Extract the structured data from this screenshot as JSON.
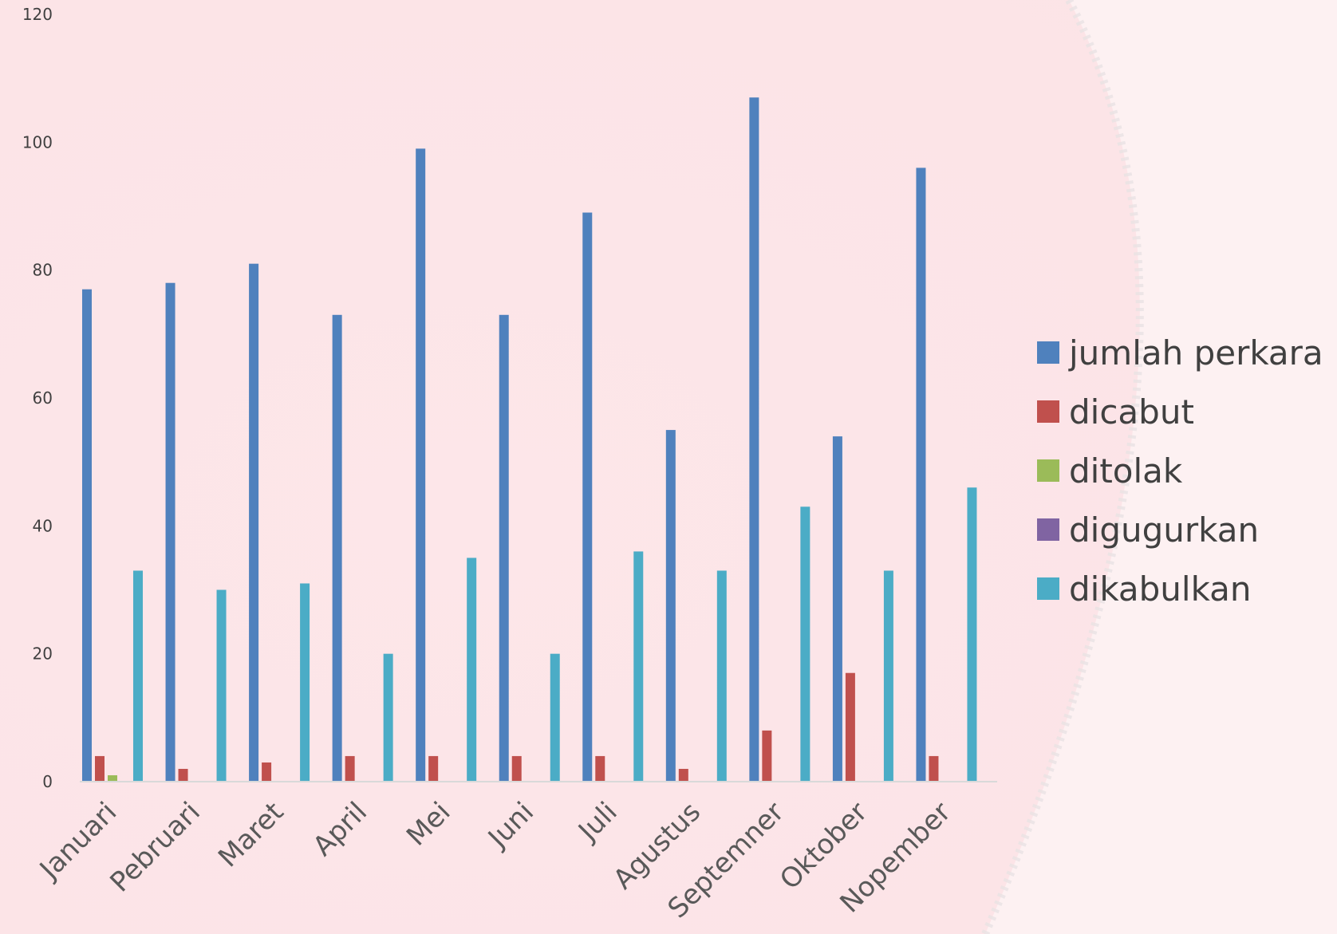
{
  "chart_data": {
    "type": "bar",
    "categories": [
      "Januari",
      "Pebruari",
      "Maret",
      "April",
      "Mei",
      "Juni",
      "Juli",
      "Agustus",
      "Septemner",
      "Oktober",
      "Nopember"
    ],
    "series": [
      {
        "name": "jumlah perkara",
        "color": "#4f81bd",
        "values": [
          77,
          78,
          81,
          73,
          99,
          73,
          89,
          55,
          107,
          54,
          96
        ]
      },
      {
        "name": "dicabut",
        "color": "#c0504d",
        "values": [
          4,
          2,
          3,
          4,
          4,
          4,
          4,
          2,
          8,
          17,
          4
        ]
      },
      {
        "name": "ditolak",
        "color": "#9bbb59",
        "values": [
          1,
          0,
          0,
          0,
          0,
          0,
          0,
          0,
          0,
          0,
          0
        ]
      },
      {
        "name": "digugurkan",
        "color": "#8064a2",
        "values": [
          0,
          0,
          0,
          0,
          0,
          0,
          0,
          0,
          0,
          0,
          0
        ]
      },
      {
        "name": "dikabulkan",
        "color": "#4bacc6",
        "values": [
          33,
          30,
          31,
          20,
          35,
          20,
          36,
          33,
          43,
          33,
          46
        ]
      }
    ],
    "ylim": [
      0,
      120
    ],
    "yticks": [
      0,
      20,
      40,
      60,
      80,
      100,
      120
    ],
    "grid": false,
    "legend_position": "right"
  }
}
